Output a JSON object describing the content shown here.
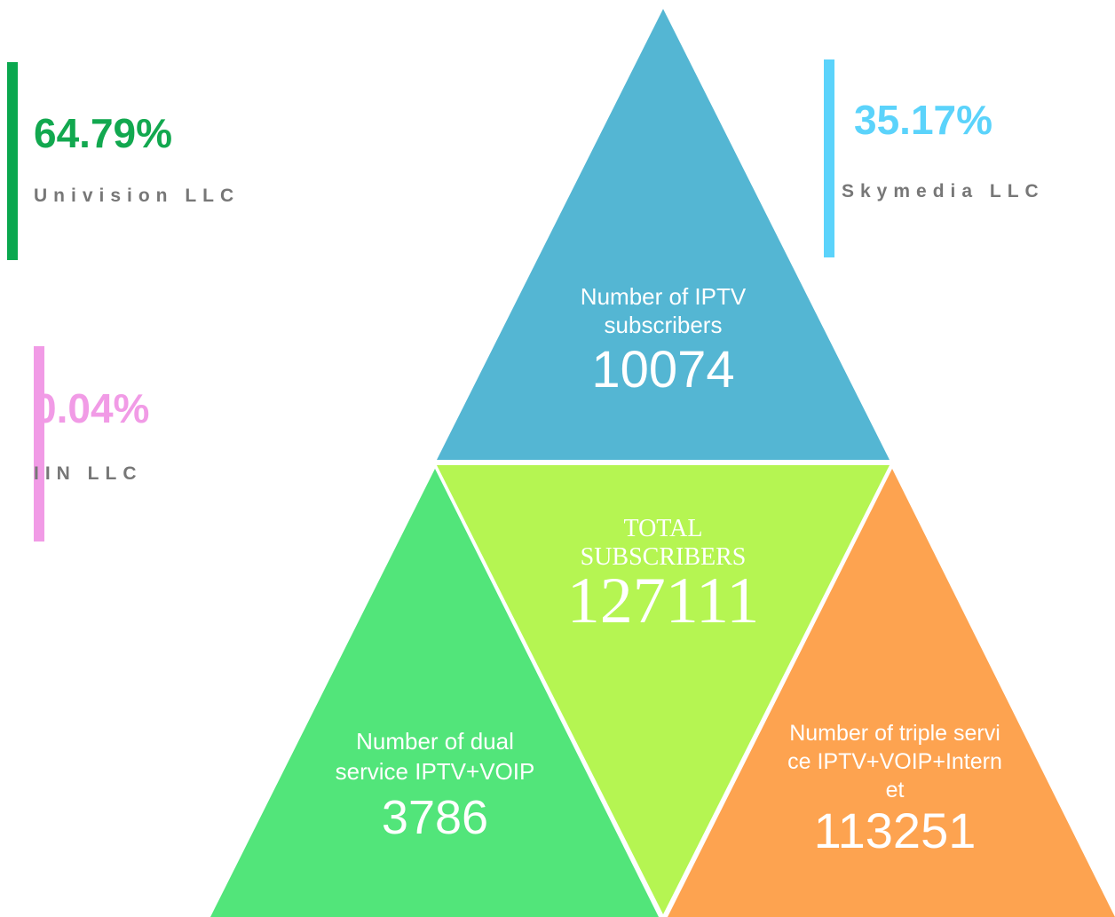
{
  "stats": [
    {
      "percent": "64.79%",
      "company": "Univision LLC"
    },
    {
      "percent": "35.17%",
      "company": "Skymedia LLC"
    },
    {
      "percent": "0.04%",
      "company": "IIN LLC"
    }
  ],
  "triangles": [
    {
      "label": "Number of IPTV subscribers",
      "value": "10074"
    },
    {
      "label": "TOTAL SUBSCRIBERS",
      "value": "127111"
    },
    {
      "label": "Number of dual service IPTV+VOIP",
      "value": "3786"
    },
    {
      "label": "Number of triple service IPTV+VOIP+Internet",
      "value": "113251"
    }
  ]
}
